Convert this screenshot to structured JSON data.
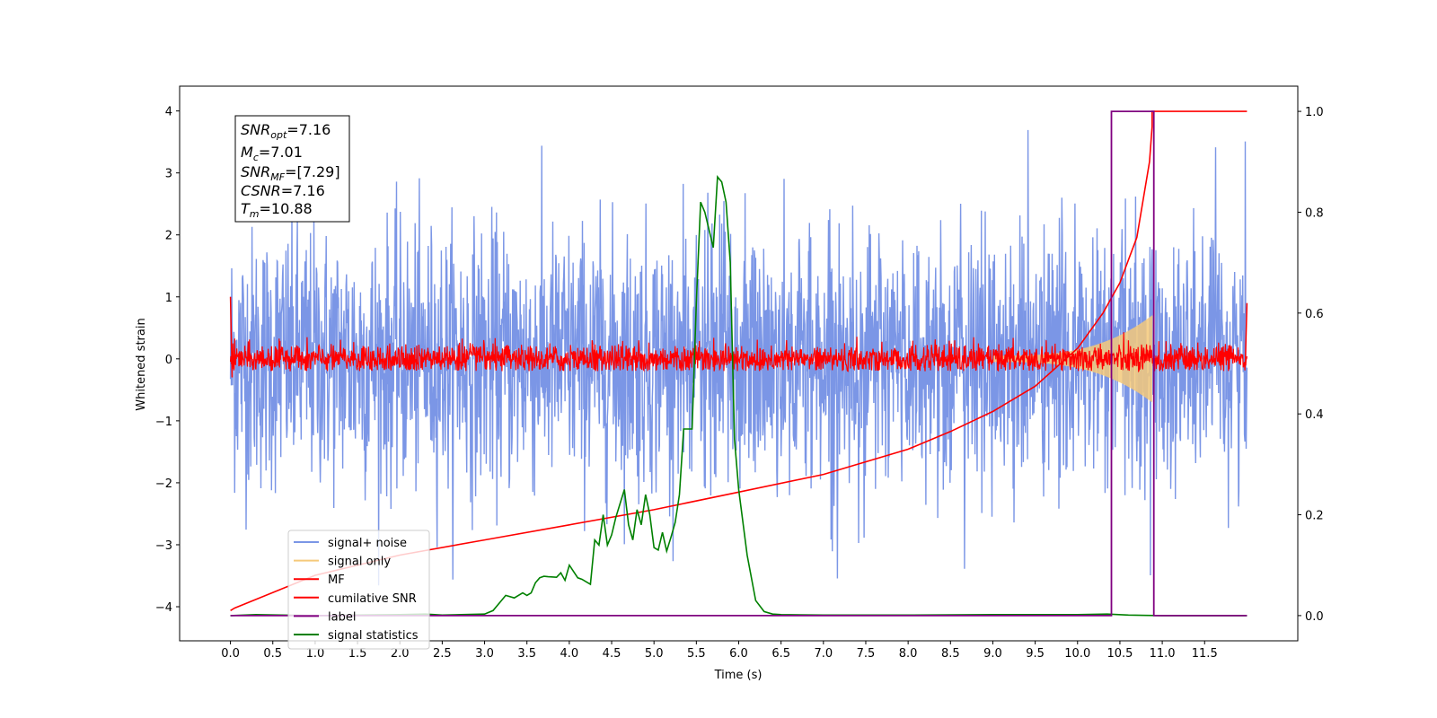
{
  "chart_data": {
    "type": "line",
    "xlabel": "Time (s)",
    "ylabel": "Whitened strain",
    "xlim": [
      -0.6,
      12.6
    ],
    "ylim": [
      -4.55,
      4.4
    ],
    "ylim_right": [
      -0.05,
      1.05
    ],
    "x_ticks": [
      "0.0",
      "0.5",
      "1.0",
      "1.5",
      "2.0",
      "2.5",
      "3.0",
      "3.5",
      "4.0",
      "4.5",
      "5.0",
      "5.5",
      "6.0",
      "6.5",
      "7.0",
      "7.5",
      "8.0",
      "8.5",
      "9.0",
      "9.5",
      "10.0",
      "10.5",
      "11.0",
      "11.5"
    ],
    "y_ticks": [
      "4",
      "3",
      "2",
      "1",
      "0",
      "−1",
      "−2",
      "−3",
      "−4"
    ],
    "y_ticks_right": [
      "1.0",
      "0.8",
      "0.6",
      "0.4",
      "0.2",
      "0.0"
    ],
    "legend_position": "lower-left",
    "info_box": {
      "snr_opt": {
        "base": "SNR",
        "sub": "opt",
        "value": "=7.16"
      },
      "mc": {
        "base": "M",
        "sub": "c",
        "value": "=7.01"
      },
      "snr_mf": {
        "base": "SNR",
        "sub": "MF",
        "value": "=[7.29]"
      },
      "csnr": {
        "base": "CSNR",
        "sub": "",
        "value": "=7.16"
      },
      "tm": {
        "base": "T",
        "sub": "m",
        "value": "=10.88"
      }
    },
    "series": [
      {
        "name": "signal+ noise",
        "color": "#7b96e6",
        "axis": "left",
        "description": "noisy band",
        "band": {
          "x_start": 0.0,
          "x_end": 12.0,
          "upper_typical": 2.3,
          "upper_max": 4.0,
          "lower_typical": -2.2,
          "lower_min": -3.7
        }
      },
      {
        "name": "signal only",
        "color": "#f5c97a",
        "axis": "left",
        "chirp": {
          "x_start": 9.0,
          "x_end": 10.88,
          "amp_start": 0.05,
          "amp_end": 0.7
        }
      },
      {
        "name": "MF",
        "color": "#ff0000",
        "axis": "left",
        "band": {
          "x_start": 0.0,
          "x_end": 12.0,
          "upper_typical": 0.2,
          "upper_max": 0.5,
          "lower_typical": -0.15,
          "lower_min": -0.2
        }
      },
      {
        "name": "cumilative SNR",
        "color": "#ff0000",
        "axis": "right",
        "x": [
          0.0,
          0.05,
          1.0,
          2.0,
          3.0,
          4.0,
          5.0,
          6.0,
          7.0,
          8.0,
          8.5,
          9.0,
          9.5,
          10.0,
          10.3,
          10.5,
          10.7,
          10.85,
          10.88,
          10.88,
          12.0
        ],
        "y": [
          0.01,
          0.015,
          0.08,
          0.12,
          0.15,
          0.18,
          0.21,
          0.245,
          0.28,
          0.33,
          0.365,
          0.405,
          0.455,
          0.53,
          0.6,
          0.66,
          0.75,
          0.9,
          0.97,
          1.0,
          1.0
        ]
      },
      {
        "name": "label",
        "color": "#800080",
        "axis": "right",
        "x": [
          0.0,
          10.4,
          10.4,
          10.9,
          10.9,
          12.0
        ],
        "y": [
          0.0,
          0.0,
          1.0,
          1.0,
          0.0,
          0.0
        ]
      },
      {
        "name": "signal statistics",
        "color": "#008000",
        "axis": "right",
        "x": [
          0.0,
          0.3,
          0.6,
          1.0,
          1.5,
          2.0,
          2.3,
          2.5,
          3.0,
          3.1,
          3.25,
          3.35,
          3.45,
          3.5,
          3.55,
          3.6,
          3.65,
          3.7,
          3.75,
          3.85,
          3.9,
          3.95,
          4.0,
          4.1,
          4.15,
          4.25,
          4.3,
          4.35,
          4.4,
          4.45,
          4.5,
          4.55,
          4.65,
          4.7,
          4.75,
          4.8,
          4.85,
          4.9,
          4.95,
          5.0,
          5.05,
          5.1,
          5.15,
          5.2,
          5.25,
          5.3,
          5.35,
          5.45,
          5.5,
          5.55,
          5.6,
          5.7,
          5.75,
          5.8,
          5.85,
          5.9,
          5.95,
          6.0,
          6.1,
          6.2,
          6.3,
          6.4,
          6.5,
          7.0,
          8.0,
          9.0,
          10.0,
          10.35,
          10.6,
          11.0,
          12.0
        ],
        "y": [
          0.0,
          0.002,
          0.001,
          0.0,
          0.001,
          0.002,
          0.003,
          0.001,
          0.003,
          0.01,
          0.04,
          0.035,
          0.045,
          0.04,
          0.045,
          0.065,
          0.075,
          0.078,
          0.077,
          0.076,
          0.085,
          0.07,
          0.1,
          0.075,
          0.072,
          0.062,
          0.15,
          0.14,
          0.2,
          0.14,
          0.16,
          0.195,
          0.25,
          0.18,
          0.15,
          0.21,
          0.18,
          0.24,
          0.2,
          0.135,
          0.13,
          0.165,
          0.128,
          0.155,
          0.185,
          0.24,
          0.37,
          0.37,
          0.62,
          0.82,
          0.8,
          0.73,
          0.87,
          0.86,
          0.82,
          0.7,
          0.35,
          0.25,
          0.12,
          0.03,
          0.008,
          0.003,
          0.002,
          0.001,
          0.001,
          0.002,
          0.002,
          0.003,
          0.001,
          0.0,
          0.0
        ]
      }
    ]
  }
}
